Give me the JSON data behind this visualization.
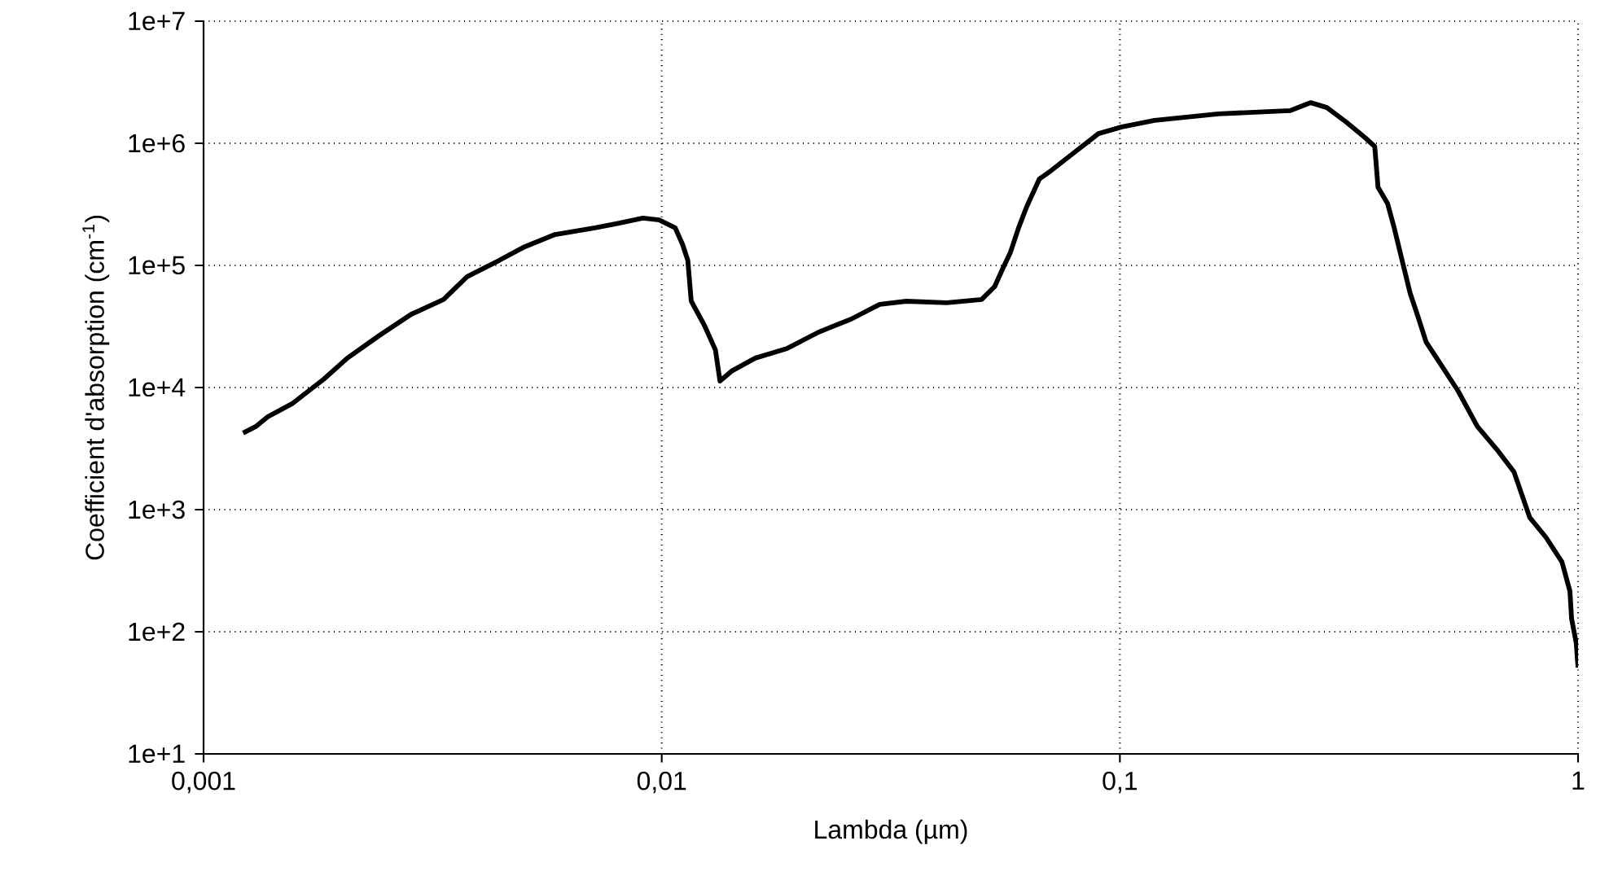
{
  "chart_data": {
    "type": "line",
    "xlabel": "Lambda (µm)",
    "ylabel": "Coefficient d'absorption (cm$^{-1}$)",
    "x": [
      0.00122,
      0.0013,
      0.00138,
      0.00156,
      0.00183,
      0.00206,
      0.00242,
      0.00284,
      0.00334,
      0.00376,
      0.00442,
      0.00498,
      0.00585,
      0.00715,
      0.00807,
      0.0091,
      0.00987,
      0.0107,
      0.0111,
      0.0114,
      0.0116,
      0.0124,
      0.0131,
      0.0134,
      0.0142,
      0.016,
      0.0188,
      0.022,
      0.0259,
      0.0299,
      0.0342,
      0.0419,
      0.0499,
      0.0533,
      0.0555,
      0.0577,
      0.0601,
      0.0626,
      0.0667,
      0.0706,
      0.0784,
      0.0898,
      0.101,
      0.119,
      0.164,
      0.235,
      0.261,
      0.283,
      0.312,
      0.344,
      0.36,
      0.366,
      0.384,
      0.397,
      0.413,
      0.43,
      0.448,
      0.466,
      0.497,
      0.547,
      0.603,
      0.669,
      0.725,
      0.785,
      0.851,
      0.922,
      0.96,
      0.968,
      0.991,
      1.0
    ],
    "series": [
      {
        "color": "#000000",
        "values": [
          4240,
          4790,
          5750,
          7360,
          11700,
          17400,
          26700,
          39800,
          52500,
          80700,
          110000,
          140000,
          179000,
          203000,
          222000,
          244000,
          236000,
          203000,
          149000,
          110000,
          50900,
          32100,
          20300,
          11300,
          13600,
          17400,
          20900,
          28400,
          36300,
          47900,
          50900,
          49400,
          52500,
          67100,
          94000,
          128000,
          203000,
          302000,
          509000,
          593000,
          807000,
          1200000,
          1360000,
          1540000,
          1740000,
          1850000,
          2150000,
          1960000,
          1490000,
          1100000,
          940000,
          437000,
          321000,
          203000,
          110000,
          59300,
          37400,
          23600,
          16300,
          9400,
          4790,
          3020,
          2030,
          858,
          593,
          374,
          215,
          128,
          80.7,
          50.9
        ]
      }
    ],
    "log": "xy",
    "xlim": [
      0.001,
      1
    ],
    "ylim": [
      10,
      10000000
    ],
    "xticks": [
      {
        "value": 0.001,
        "label": "0,001"
      },
      {
        "value": 0.01,
        "label": "0,01"
      },
      {
        "value": 0.1,
        "label": "0,1"
      },
      {
        "value": 1,
        "label": "1"
      }
    ],
    "yticks": [
      {
        "value": 10,
        "label": "1e+1"
      },
      {
        "value": 100,
        "label": "1e+2"
      },
      {
        "value": 1000,
        "label": "1e+3"
      },
      {
        "value": 10000,
        "label": "1e+4"
      },
      {
        "value": 100000,
        "label": "1e+5"
      },
      {
        "value": 1000000,
        "label": "1e+6"
      },
      {
        "value": 10000000,
        "label": "1e+7"
      }
    ],
    "grid": true,
    "marker": "none",
    "line_style": "solid"
  }
}
